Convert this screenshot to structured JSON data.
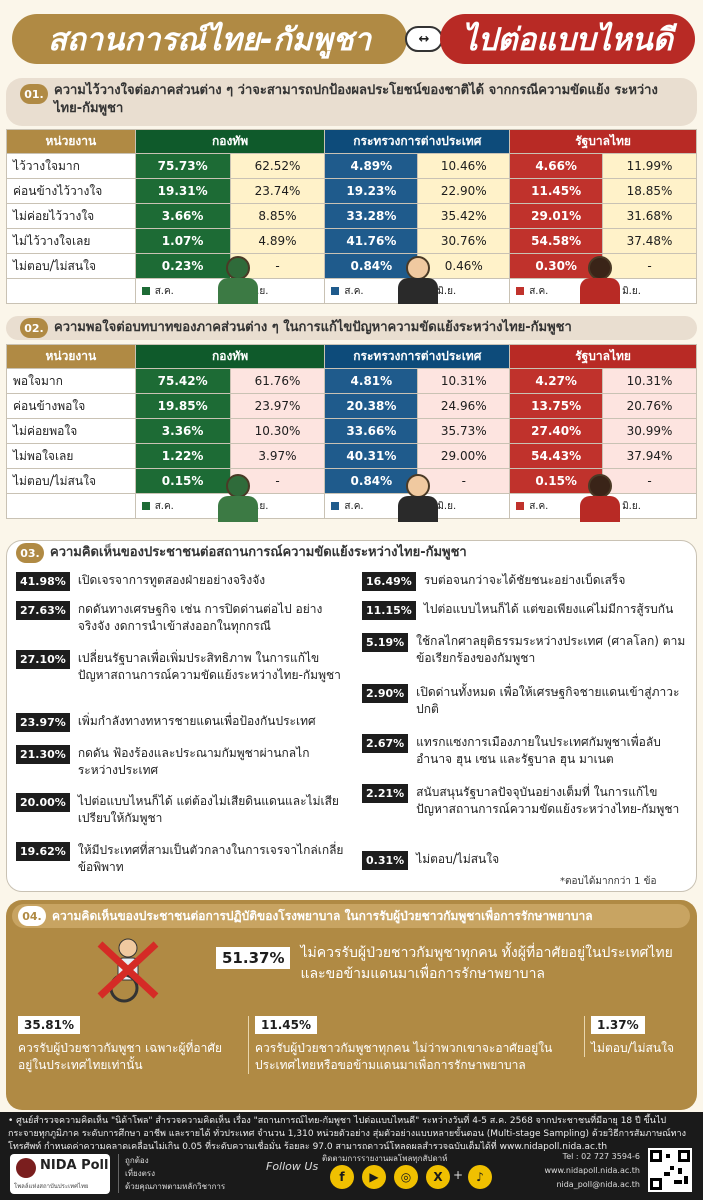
{
  "header": {
    "left_title": "สถานการณ์ไทย-กัมพูชา",
    "swap": "↔",
    "right_title": "ไปต่อแบบไหนดี"
  },
  "sec1": {
    "num": "01.",
    "title": "ความไว้วางใจต่อภาคส่วนต่าง ๆ ว่าจะสามารถปกป้องผลประโยชน์ของชาติได้ จากกรณีความขัดแย้ง ระหว่างไทย-กัมพูชา",
    "headers": [
      "หน่วยงาน",
      "กองทัพ",
      "กระทรวงการต่างประเทศ",
      "รัฐบาลไทย"
    ],
    "rows": [
      {
        "label": "ไว้วางใจมาก",
        "g1": "75.73%",
        "g2": "62.52%",
        "b1": "4.89%",
        "b2": "10.46%",
        "r1": "4.66%",
        "r2": "11.99%"
      },
      {
        "label": "ค่อนข้างไว้วางใจ",
        "g1": "19.31%",
        "g2": "23.74%",
        "b1": "19.23%",
        "b2": "22.90%",
        "r1": "11.45%",
        "r2": "18.85%"
      },
      {
        "label": "ไม่ค่อยไว้วางใจ",
        "g1": "3.66%",
        "g2": "8.85%",
        "b1": "33.28%",
        "b2": "35.42%",
        "r1": "29.01%",
        "r2": "31.68%"
      },
      {
        "label": "ไม่ไว้วางใจเลย",
        "g1": "1.07%",
        "g2": "4.89%",
        "b1": "41.76%",
        "b2": "30.76%",
        "r1": "54.58%",
        "r2": "37.48%"
      },
      {
        "label": "ไม่ตอบ/ไม่สนใจ",
        "g1": "0.23%",
        "g2": "-",
        "b1": "0.84%",
        "b2": "0.46%",
        "r1": "0.30%",
        "r2": "-"
      }
    ],
    "legend": {
      "a": "ส.ค.",
      "b": "มิ.ย."
    }
  },
  "sec2": {
    "num": "02.",
    "title": "ความพอใจต่อบทบาทของภาคส่วนต่าง ๆ ในการแก้ไขปัญหาความขัดแย้งระหว่างไทย-กัมพูชา",
    "headers": [
      "หน่วยงาน",
      "กองทัพ",
      "กระทรวงการต่างประเทศ",
      "รัฐบาลไทย"
    ],
    "rows": [
      {
        "label": "พอใจมาก",
        "g1": "75.42%",
        "g2": "61.76%",
        "b1": "4.81%",
        "b2": "10.31%",
        "r1": "4.27%",
        "r2": "10.31%"
      },
      {
        "label": "ค่อนข้างพอใจ",
        "g1": "19.85%",
        "g2": "23.97%",
        "b1": "20.38%",
        "b2": "24.96%",
        "r1": "13.75%",
        "r2": "20.76%"
      },
      {
        "label": "ไม่ค่อยพอใจ",
        "g1": "3.36%",
        "g2": "10.30%",
        "b1": "33.66%",
        "b2": "35.73%",
        "r1": "27.40%",
        "r2": "30.99%"
      },
      {
        "label": "ไม่พอใจเลย",
        "g1": "1.22%",
        "g2": "3.97%",
        "b1": "40.31%",
        "b2": "29.00%",
        "r1": "54.43%",
        "r2": "37.94%"
      },
      {
        "label": "ไม่ตอบ/ไม่สนใจ",
        "g1": "0.15%",
        "g2": "-",
        "b1": "0.84%",
        "b2": "-",
        "r1": "0.15%",
        "r2": "-"
      }
    ],
    "legend": {
      "a": "ส.ค.",
      "b": "มิ.ย."
    }
  },
  "sec3": {
    "num": "03.",
    "title": "ความคิดเห็นของประชาชนต่อสถานการณ์ความขัดแย้งระหว่างไทย-กัมพูชา",
    "left": [
      {
        "pct": "41.98%",
        "text": "เปิดเจรจาการทูตสองฝ่ายอย่างจริงจัง"
      },
      {
        "pct": "27.63%",
        "text": "กดดันทางเศรษฐกิจ เช่น การปิดด่านต่อไป อย่างจริงจัง งดการนำเข้าส่งออกในทุกกรณี"
      },
      {
        "pct": "27.10%",
        "text": "เปลี่ยนรัฐบาลเพื่อเพิ่มประสิทธิภาพ ในการแก้ไขปัญหาสถานการณ์ความขัดแย้งระหว่างไทย-กัมพูชา"
      },
      {
        "pct": "23.97%",
        "text": "เพิ่มกำลังทางทหารชายแดนเพื่อป้องกันประเทศ"
      },
      {
        "pct": "21.30%",
        "text": "กดดัน ฟ้องร้องและประณามกัมพูชาผ่านกลไกระหว่างประเทศ"
      },
      {
        "pct": "20.00%",
        "text": "ไปต่อแบบไหนก็ได้ แต่ต้องไม่เสียดินแดนและไม่เสียเปรียบให้กัมพูชา"
      },
      {
        "pct": "19.62%",
        "text": "ให้มีประเทศที่สามเป็นตัวกลางในการเจรจาไกล่เกลี่ยข้อพิพาท"
      }
    ],
    "right": [
      {
        "pct": "16.49%",
        "text": "รบต่อจนกว่าจะได้ชัยชนะอย่างเบ็ดเสร็จ"
      },
      {
        "pct": "11.15%",
        "text": "ไปต่อแบบไหนก็ได้ แต่ขอเพียงแค่ไม่มีการสู้รบกัน"
      },
      {
        "pct": "5.19%",
        "text": "ใช้กลไกศาลยุติธรรมระหว่างประเทศ (ศาลโลก) ตามข้อเรียกร้องของกัมพูชา"
      },
      {
        "pct": "2.90%",
        "text": "เปิดด่านทั้งหมด เพื่อให้เศรษฐกิจชายแดนเข้าสู่ภาวะปกติ"
      },
      {
        "pct": "2.67%",
        "text": "แทรกแซงการเมืองภายในประเทศกัมพูชาเพื่อลับอำนาจ ฮุน เซน และรัฐบาล ฮุน มาเนต"
      },
      {
        "pct": "2.21%",
        "text": "สนับสนุนรัฐบาลปัจจุบันอย่างเต็มที่ ในการแก้ไขปัญหาสถานการณ์ความขัดแย้งระหว่างไทย-กัมพูชา"
      },
      {
        "pct": "0.31%",
        "text": "ไม่ตอบ/ไม่สนใจ"
      }
    ],
    "note": "*ตอบได้มากกว่า 1 ข้อ"
  },
  "sec4": {
    "num": "04.",
    "title": "ความคิดเห็นของประชาชนต่อการปฏิบัติของโรงพยาบาล ในการรับผู้ป่วยชาวกัมพูชาเพื่อการรักษาพยาบาล",
    "main_pct": "51.37%",
    "main_text": "ไม่ควรรับผู้ป่วยชาวกัมพูชาทุกคน ทั้งผู้ที่อาศัยอยู่ในประเทศไทยและขอข้ามแดนมาเพื่อการรักษาพยาบาล",
    "a_pct": "35.81%",
    "a_text": "ควรรับผู้ป่วยชาวกัมพูชา เฉพาะผู้ที่อาศัยอยู่ในประเทศไทยเท่านั้น",
    "b_pct": "11.45%",
    "b_text": "ควรรับผู้ป่วยชาวกัมพูชาทุกคน ไม่ว่าพวกเขาจะอาศัยอยู่ในประเทศไทยหรือขอข้ามแดนมาเพื่อการรักษาพยาบาล",
    "c_pct": "1.37%",
    "c_text": "ไม่ตอบ/ไม่สนใจ"
  },
  "footer": {
    "info": "• ศูนย์สำรวจความคิดเห็น \"นิด้าโพล\" สำรวจความคิดเห็น เรื่อง \"สถานการณ์ไทย-กัมพูชา ไปต่อแบบไหนดี\" ระหว่างวันที่ 4-5 ส.ค. 2568 จากประชาชนที่มีอายุ 18 ปี ขึ้นไป กระจายทุกภูมิภาค ระดับการศึกษา อาชีพ และรายได้ ทั่วประเทศ จำนวน 1,310 หน่วยตัวอย่าง สุ่มตัวอย่างแบบหลายขั้นตอน (Multi-stage Sampling) ด้วยวิธีการสัมภาษณ์ทางโทรศัพท์ กำหนดค่าความคลาดเคลื่อนไม่เกิน 0.05 ที่ระดับความเชื่อมั่น ร้อยละ 97.0 สามารถดาวน์โหลดผลสำรวจฉบับเต็มได้ที่ www.nidapoll.nida.ac.th",
    "logo": "NIDA Poll",
    "logo_sub": "โพลล์แห่งสถาบันประเทศไทย",
    "motto": [
      "ถูกต้อง",
      "เที่ยงตรง",
      "ด้วยคุณภาพตามหลักวิชาการ"
    ],
    "follow": "Follow Us",
    "track": "ติดตามการรายงานผลโพลทุกสัปดาห์",
    "social": [
      "f",
      "▶",
      "◎",
      "X",
      "+",
      "♪"
    ],
    "tel": "Tel : 02 727 3594-6",
    "web": "www.nidapoll.nida.ac.th",
    "email": "nida_poll@nida.ac.th"
  }
}
